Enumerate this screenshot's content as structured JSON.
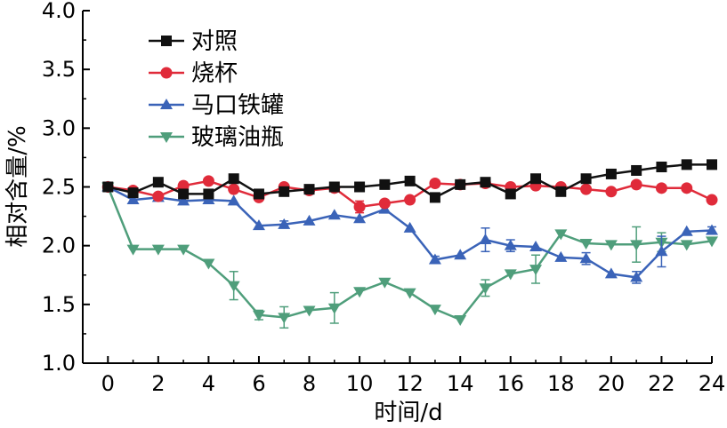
{
  "chart_data": {
    "type": "line",
    "xlabel": "时间/d",
    "ylabel": "相对含量/%",
    "xlim": [
      -1,
      24
    ],
    "ylim": [
      1.0,
      4.0
    ],
    "xticks": [
      0,
      2,
      4,
      6,
      8,
      10,
      12,
      14,
      16,
      18,
      20,
      22,
      24
    ],
    "yticks": [
      1.0,
      1.5,
      2.0,
      2.5,
      3.0,
      3.5,
      4.0
    ],
    "xtick_labels": [
      "0",
      "2",
      "4",
      "6",
      "8",
      "10",
      "12",
      "14",
      "16",
      "18",
      "20",
      "22",
      "24"
    ],
    "ytick_labels": [
      "1.0",
      "1.5",
      "2.0",
      "2.5",
      "3.0",
      "3.5",
      "4.0"
    ],
    "grid": false,
    "legend_position": "top-left",
    "x": [
      0,
      1,
      2,
      3,
      4,
      5,
      6,
      7,
      8,
      9,
      10,
      11,
      12,
      13,
      14,
      15,
      16,
      17,
      18,
      19,
      20,
      21,
      22,
      23,
      24
    ],
    "series": [
      {
        "name": "对照",
        "color": "#111111",
        "marker": "square",
        "values": [
          2.5,
          2.45,
          2.54,
          2.44,
          2.44,
          2.57,
          2.44,
          2.46,
          2.48,
          2.5,
          2.5,
          2.52,
          2.55,
          2.41,
          2.52,
          2.54,
          2.44,
          2.57,
          2.46,
          2.57,
          2.61,
          2.64,
          2.67,
          2.69,
          2.69
        ],
        "errors": [
          0.02,
          0.02,
          0.02,
          0.02,
          0.02,
          0.02,
          0.02,
          0.02,
          0.02,
          0.02,
          0.02,
          0.02,
          0.02,
          0.02,
          0.02,
          0.02,
          0.02,
          0.02,
          0.02,
          0.02,
          0.02,
          0.02,
          0.02,
          0.02,
          0.02
        ]
      },
      {
        "name": "烧杯",
        "color": "#e02b3a",
        "marker": "circle",
        "values": [
          2.5,
          2.47,
          2.42,
          2.51,
          2.55,
          2.48,
          2.41,
          2.5,
          2.47,
          2.49,
          2.33,
          2.36,
          2.39,
          2.53,
          2.52,
          2.53,
          2.5,
          2.51,
          2.5,
          2.48,
          2.46,
          2.52,
          2.49,
          2.49,
          2.39
        ],
        "errors": [
          0.02,
          0.02,
          0.02,
          0.03,
          0.02,
          0.02,
          0.02,
          0.02,
          0.02,
          0.02,
          0.05,
          0.02,
          0.02,
          0.02,
          0.02,
          0.02,
          0.02,
          0.02,
          0.02,
          0.02,
          0.02,
          0.02,
          0.02,
          0.02,
          0.02
        ]
      },
      {
        "name": "马口铁罐",
        "color": "#3a63b8",
        "marker": "triangle-up",
        "values": [
          2.5,
          2.39,
          2.41,
          2.38,
          2.39,
          2.38,
          2.17,
          2.18,
          2.21,
          2.26,
          2.23,
          2.31,
          2.15,
          1.88,
          1.92,
          2.05,
          2.0,
          1.99,
          1.9,
          1.89,
          1.76,
          1.73,
          1.95,
          2.12,
          2.13
        ],
        "errors": [
          0.02,
          0.02,
          0.02,
          0.02,
          0.02,
          0.02,
          0.02,
          0.03,
          0.02,
          0.02,
          0.02,
          0.02,
          0.02,
          0.03,
          0.02,
          0.1,
          0.05,
          0.02,
          0.02,
          0.05,
          0.02,
          0.05,
          0.13,
          0.02,
          0.03
        ]
      },
      {
        "name": "玻璃油瓶",
        "color": "#4f9e7b",
        "marker": "triangle-down",
        "values": [
          2.5,
          1.97,
          1.97,
          1.97,
          1.85,
          1.66,
          1.41,
          1.39,
          1.45,
          1.47,
          1.61,
          1.69,
          1.6,
          1.46,
          1.37,
          1.64,
          1.76,
          1.8,
          2.1,
          2.02,
          2.01,
          2.01,
          2.03,
          2.01,
          2.04
        ],
        "errors": [
          0.02,
          0.02,
          0.02,
          0.02,
          0.02,
          0.12,
          0.04,
          0.09,
          0.02,
          0.13,
          0.02,
          0.02,
          0.02,
          0.02,
          0.02,
          0.07,
          0.02,
          0.12,
          0.02,
          0.02,
          0.02,
          0.15,
          0.08,
          0.02,
          0.02
        ]
      }
    ]
  }
}
